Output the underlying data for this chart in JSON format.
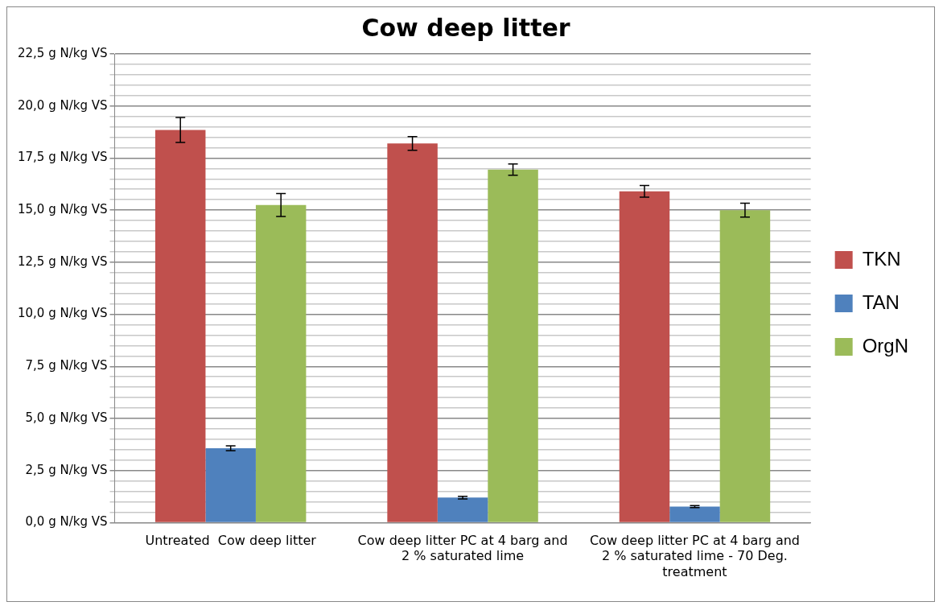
{
  "chart_data": {
    "type": "bar",
    "title": "Cow deep litter",
    "categories": [
      "Untreated  Cow deep litter",
      "Cow deep litter PC at 4 barg and 2 % saturated lime",
      "Cow deep litter PC at 4 barg and 2 % saturated lime - 70 Deg. treatment"
    ],
    "series": [
      {
        "name": "TKN",
        "color": "#c0504d",
        "values": [
          18.85,
          18.2,
          15.9
        ],
        "errors": [
          0.6,
          0.33,
          0.28
        ]
      },
      {
        "name": "TAN",
        "color": "#4f81bd",
        "values": [
          3.57,
          1.2,
          0.77
        ],
        "errors": [
          0.12,
          0.06,
          0.05
        ]
      },
      {
        "name": "OrgN",
        "color": "#9bbb59",
        "values": [
          15.25,
          16.95,
          15.0
        ],
        "errors": [
          0.55,
          0.27,
          0.33
        ]
      }
    ],
    "ylim": [
      0,
      22.5
    ],
    "yticks": [
      {
        "value": 0,
        "label": "0,0 g N/kg VS"
      },
      {
        "value": 0.5,
        "label": null
      },
      {
        "value": 1,
        "label": null
      },
      {
        "value": 1.5,
        "label": null
      },
      {
        "value": 2,
        "label": null
      },
      {
        "value": 2.5,
        "label": "2,5 g N/kg VS"
      },
      {
        "value": 3,
        "label": null
      },
      {
        "value": 3.5,
        "label": null
      },
      {
        "value": 4,
        "label": null
      },
      {
        "value": 4.5,
        "label": null
      },
      {
        "value": 5,
        "label": "5,0 g N/kg VS"
      },
      {
        "value": 5.5,
        "label": null
      },
      {
        "value": 6,
        "label": null
      },
      {
        "value": 6.5,
        "label": null
      },
      {
        "value": 7,
        "label": null
      },
      {
        "value": 7.5,
        "label": "7,5 g N/kg VS"
      },
      {
        "value": 8,
        "label": null
      },
      {
        "value": 8.5,
        "label": null
      },
      {
        "value": 9,
        "label": null
      },
      {
        "value": 9.5,
        "label": null
      },
      {
        "value": 10,
        "label": "10,0 g N/kg VS"
      },
      {
        "value": 10.5,
        "label": null
      },
      {
        "value": 11,
        "label": null
      },
      {
        "value": 11.5,
        "label": null
      },
      {
        "value": 12,
        "label": null
      },
      {
        "value": 12.5,
        "label": "12,5 g N/kg VS"
      },
      {
        "value": 13,
        "label": null
      },
      {
        "value": 13.5,
        "label": null
      },
      {
        "value": 14,
        "label": null
      },
      {
        "value": 14.5,
        "label": null
      },
      {
        "value": 15,
        "label": "15,0 g N/kg VS"
      },
      {
        "value": 15.5,
        "label": null
      },
      {
        "value": 16,
        "label": null
      },
      {
        "value": 16.5,
        "label": null
      },
      {
        "value": 17,
        "label": null
      },
      {
        "value": 17.5,
        "label": "17,5 g N/kg VS"
      },
      {
        "value": 18,
        "label": null
      },
      {
        "value": 18.5,
        "label": null
      },
      {
        "value": 19,
        "label": null
      },
      {
        "value": 19.5,
        "label": null
      },
      {
        "value": 20,
        "label": "20,0 g N/kg VS"
      },
      {
        "value": 20.5,
        "label": null
      },
      {
        "value": 21,
        "label": null
      },
      {
        "value": 21.5,
        "label": null
      },
      {
        "value": 22,
        "label": null
      },
      {
        "value": 22.5,
        "label": "22,5 g N/kg VS"
      }
    ],
    "grid": "y",
    "legend": "right"
  }
}
